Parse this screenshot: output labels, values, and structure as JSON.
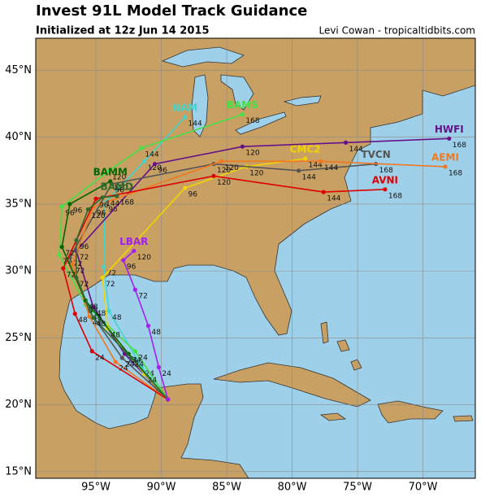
{
  "chart_data": {
    "type": "track-map",
    "title": "Invest 91L Model Track Guidance",
    "subtitle": "Initialized at 12z Jun 14 2015",
    "credit": "Levi Cowan - tropicaltidbits.com",
    "xlim": [
      -99.6,
      -66.0
    ],
    "ylim": [
      14.5,
      47.4
    ],
    "xticks": [
      {
        "value": -95,
        "label": "95°W"
      },
      {
        "value": -90,
        "label": "90°W"
      },
      {
        "value": -85,
        "label": "85°W"
      },
      {
        "value": -80,
        "label": "80°W"
      },
      {
        "value": -75,
        "label": "75°W"
      },
      {
        "value": -70,
        "label": "70°W"
      }
    ],
    "yticks": [
      {
        "value": 15,
        "label": "15°N"
      },
      {
        "value": 20,
        "label": "20°N"
      },
      {
        "value": 25,
        "label": "25°N"
      },
      {
        "value": 30,
        "label": "30°N"
      },
      {
        "value": 35,
        "label": "35°N"
      },
      {
        "value": 40,
        "label": "40°N"
      },
      {
        "value": 45,
        "label": "45°N"
      }
    ],
    "grid": true,
    "series": [
      {
        "name": "NAM",
        "color": "#3fd6d0",
        "x": [
          -89.5,
          -91.5,
          -94.0,
          -94.4,
          -94.3,
          -91.3,
          -88.2
        ],
        "values": [
          20.4,
          22.8,
          27.0,
          30.3,
          35.1,
          38.2,
          41.5
        ],
        "hours": [
          null,
          24,
          48,
          72,
          96,
          120,
          144
        ]
      },
      {
        "name": "BAMS",
        "color": "#44e044",
        "x": [
          -89.5,
          -92.0,
          -95.8,
          -97.8,
          -97.6,
          -94.0,
          -91.5,
          -83.8
        ],
        "values": [
          20.4,
          24.0,
          27.5,
          31.2,
          34.8,
          37.5,
          39.2,
          41.7
        ],
        "hours": [
          null,
          24,
          48,
          72,
          96,
          120,
          144,
          168
        ]
      },
      {
        "name": "HWFI",
        "color": "#66118a",
        "x": [
          -89.5,
          -92.8,
          -95.2,
          -96.5,
          -90.5,
          -83.8,
          -75.9,
          -68.0
        ],
        "values": [
          20.4,
          23.8,
          27.3,
          31.5,
          38.0,
          39.3,
          39.6,
          39.9
        ],
        "hours": [
          null,
          24,
          48,
          72,
          96,
          120,
          144,
          168
        ]
      },
      {
        "name": "CMC2",
        "color": "#f2d400",
        "x": [
          -89.5,
          -91.3,
          -94.1,
          -94.5,
          -88.2,
          -83.5,
          -79.0
        ],
        "values": [
          20.4,
          22.3,
          25.7,
          29.5,
          36.2,
          37.8,
          38.4
        ],
        "hours": [
          null,
          24,
          48,
          72,
          96,
          120,
          144
        ]
      },
      {
        "name": "TVCN",
        "color": "#555555",
        "x": [
          -89.5,
          -93.0,
          -95.5,
          -97.0,
          -93.8,
          -86.0,
          -79.5,
          -73.6
        ],
        "values": [
          20.4,
          23.5,
          27.0,
          31.0,
          36.5,
          38.0,
          37.5,
          38.0
        ],
        "hours": [
          null,
          24,
          48,
          72,
          96,
          120,
          144,
          168
        ]
      },
      {
        "name": "AEMI",
        "color": "#f07820",
        "x": [
          -89.5,
          -93.5,
          -95.5,
          -96.8,
          -95.2,
          -85.4,
          -77.8,
          -68.3
        ],
        "values": [
          20.4,
          23.2,
          26.6,
          30.5,
          34.8,
          38.2,
          38.2,
          37.8
        ],
        "hours": [
          null,
          24,
          48,
          72,
          96,
          120,
          144,
          168
        ]
      },
      {
        "name": "AVNI",
        "color": "#dd0000",
        "x": [
          -89.5,
          -95.3,
          -96.6,
          -97.5,
          -95.0,
          -86.0,
          -77.6,
          -72.9
        ],
        "values": [
          20.4,
          24.0,
          26.8,
          30.2,
          35.4,
          37.1,
          35.9,
          36.1
        ],
        "hours": [
          null,
          24,
          48,
          72,
          96,
          120,
          144,
          168
        ]
      },
      {
        "name": "BAMM",
        "color": "#006600",
        "x": [
          -89.5,
          -92.5,
          -95.8,
          -97.6,
          -97.0,
          -93.9
        ],
        "values": [
          20.4,
          23.8,
          27.8,
          31.8,
          35.0,
          36.7
        ],
        "hours": [
          null,
          24,
          48,
          72,
          96,
          120
        ]
      },
      {
        "name": "BAMD",
        "color": "#2e6b2e",
        "x": [
          -89.5,
          -92.3,
          -95.2,
          -96.5,
          -96.5,
          -95.6,
          -94.5,
          -93.4
        ],
        "values": [
          20.4,
          23.5,
          26.5,
          29.5,
          32.3,
          34.6,
          35.5,
          35.6
        ],
        "hours": [
          null,
          24,
          48,
          72,
          96,
          120,
          144,
          168
        ]
      },
      {
        "name": "LBAR",
        "color": "#a020f0",
        "x": [
          -89.5,
          -90.2,
          -91.0,
          -92.0,
          -92.9,
          -92.1
        ],
        "values": [
          20.4,
          22.8,
          25.9,
          28.6,
          30.8,
          31.5
        ],
        "hours": [
          null,
          24,
          48,
          72,
          96,
          120
        ]
      }
    ]
  }
}
